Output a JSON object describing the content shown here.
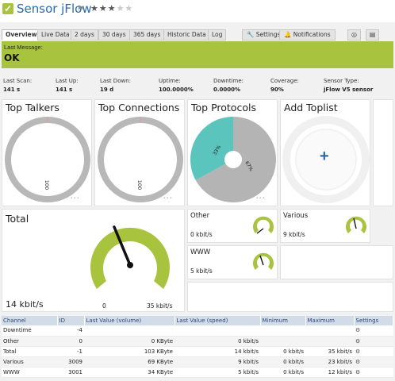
{
  "header": {
    "title": "Sensor jFlow",
    "flag_icon": "flag-icon",
    "stars_filled": 3,
    "stars_total": 5
  },
  "tabs": [
    {
      "label": "Overview",
      "active": true
    },
    {
      "label": "Live Data"
    },
    {
      "label": "2 days"
    },
    {
      "label": "30 days"
    },
    {
      "label": "365 days"
    },
    {
      "label": "Historic Data"
    },
    {
      "label": "Log"
    }
  ],
  "toolbar": {
    "settings_label": "Settings",
    "notifications_label": "Notifications"
  },
  "message": {
    "label": "Last Message:",
    "text": "OK",
    "color": "#a8c33d"
  },
  "stats": [
    {
      "label": "Last Scan:",
      "value": "141 s"
    },
    {
      "label": "Last Up:",
      "value": "141 s"
    },
    {
      "label": "Last Down:",
      "value": "19 d"
    },
    {
      "label": "Uptime:",
      "value": "100.0000%"
    },
    {
      "label": "Downtime:",
      "value": "0.0000%"
    },
    {
      "label": "Coverage:",
      "value": "90%"
    },
    {
      "label": "Sensor Type:",
      "value": "jFlow V5 sensor"
    }
  ],
  "toplists": [
    {
      "title": "Top Talkers",
      "ring_label": "100"
    },
    {
      "title": "Top Connections",
      "ring_label": "100"
    },
    {
      "title": "Top Protocols",
      "slice_a": "33%",
      "slice_b": "67%"
    },
    {
      "title": "Add Toplist"
    }
  ],
  "total": {
    "title": "Total",
    "value": "14 kbit/s",
    "gauge_min": "0",
    "gauge_max": "35 kbit/s",
    "gauge_fraction": 0.4
  },
  "channels_small": [
    {
      "name": "Other",
      "value": "0 kbit/s",
      "fraction": 0.0
    },
    {
      "name": "Various",
      "value": "9 kbit/s",
      "fraction": 0.39
    },
    {
      "name": "WWW",
      "value": "5 kbit/s",
      "fraction": 0.42
    }
  ],
  "table": {
    "headers": [
      "Channel",
      "ID",
      "Last Value (volume)",
      "Last Value (speed)",
      "Minimum",
      "Maximum",
      "Settings"
    ],
    "rows": [
      {
        "channel": "Downtime",
        "id": "-4",
        "volume": "",
        "speed": "",
        "min": "",
        "max": ""
      },
      {
        "channel": "Other",
        "id": "0",
        "volume": "0 KByte",
        "speed": "0 kbit/s",
        "min": "",
        "max": ""
      },
      {
        "channel": "Total",
        "id": "-1",
        "volume": "103 KByte",
        "speed": "14 kbit/s",
        "min": "0 kbit/s",
        "max": "35 kbit/s"
      },
      {
        "channel": "Various",
        "id": "3009",
        "volume": "69 KByte",
        "speed": "9 kbit/s",
        "min": "0 kbit/s",
        "max": "23 kbit/s"
      },
      {
        "channel": "WWW",
        "id": "3001",
        "volume": "34 KByte",
        "speed": "5 kbit/s",
        "min": "0 kbit/s",
        "max": "12 kbit/s"
      }
    ]
  },
  "colors": {
    "accent": "#a8c33d",
    "teal": "#5ac4bd",
    "ring_gray": "#b8b8b8",
    "link_blue": "#2b6ab0"
  }
}
